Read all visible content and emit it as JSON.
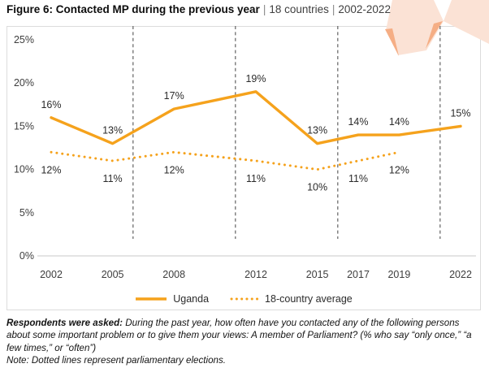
{
  "title": {
    "main": "Figure 6: Contacted MP during the previous year",
    "separator": "|",
    "countries": "18 countries",
    "period": "2002-2022"
  },
  "theme": {
    "accent_orange": "#F5A21C",
    "ribbon_pale": "#FBE2D5",
    "ribbon_mid": "#F5AE85",
    "election_line_gray": "#6E6E6E",
    "axis_line_gray": "#C8C8C8",
    "frame_gray": "#DCDCDC"
  },
  "chart_data": {
    "type": "line",
    "title": "Contacted MP during the previous year",
    "x": [
      2002,
      2005,
      2008,
      2012,
      2015,
      2017,
      2019,
      2022
    ],
    "xrange": [
      2002,
      2022
    ],
    "ylim": [
      0,
      25
    ],
    "yticks": [
      {
        "label": "0%",
        "value": 0
      },
      {
        "label": "5%",
        "value": 5
      },
      {
        "label": "10%",
        "value": 10
      },
      {
        "label": "15%",
        "value": 15
      },
      {
        "label": "20%",
        "value": 20
      },
      {
        "label": "25%",
        "value": 25
      }
    ],
    "series": [
      {
        "name": "Uganda",
        "line_style": "solid",
        "color": "#F5A21C",
        "x": [
          2002,
          2005,
          2008,
          2012,
          2015,
          2017,
          2019,
          2022
        ],
        "values": [
          16,
          13,
          17,
          19,
          13,
          14,
          14,
          15
        ],
        "labels": [
          "16%",
          "13%",
          "17%",
          "19%",
          "13%",
          "14%",
          "14%",
          "15%"
        ],
        "label_position": "above"
      },
      {
        "name": "18-country average",
        "line_style": "dotted",
        "color": "#F5A21C",
        "x": [
          2002,
          2005,
          2008,
          2012,
          2015,
          2017,
          2019
        ],
        "values": [
          12,
          11,
          12,
          11,
          10,
          11,
          12
        ],
        "labels": [
          "12%",
          "11%",
          "12%",
          "11%",
          "10%",
          "11%",
          "12%"
        ],
        "label_position": "below"
      }
    ],
    "election_years": [
      2006,
      2011,
      2016,
      2021
    ],
    "legend": [
      "Uganda",
      "18-country average"
    ],
    "legend_position": "bottom-center",
    "grid": false
  },
  "footer": {
    "prompt_label": "Respondents were asked:",
    "prompt_text": "During the past year, how often have you contacted any of the following persons about some important problem or to give them your views: A member of Parliament? (% who say “only once,” “a few times,” or “often”)",
    "note": "Note: Dotted lines represent parliamentary elections."
  }
}
